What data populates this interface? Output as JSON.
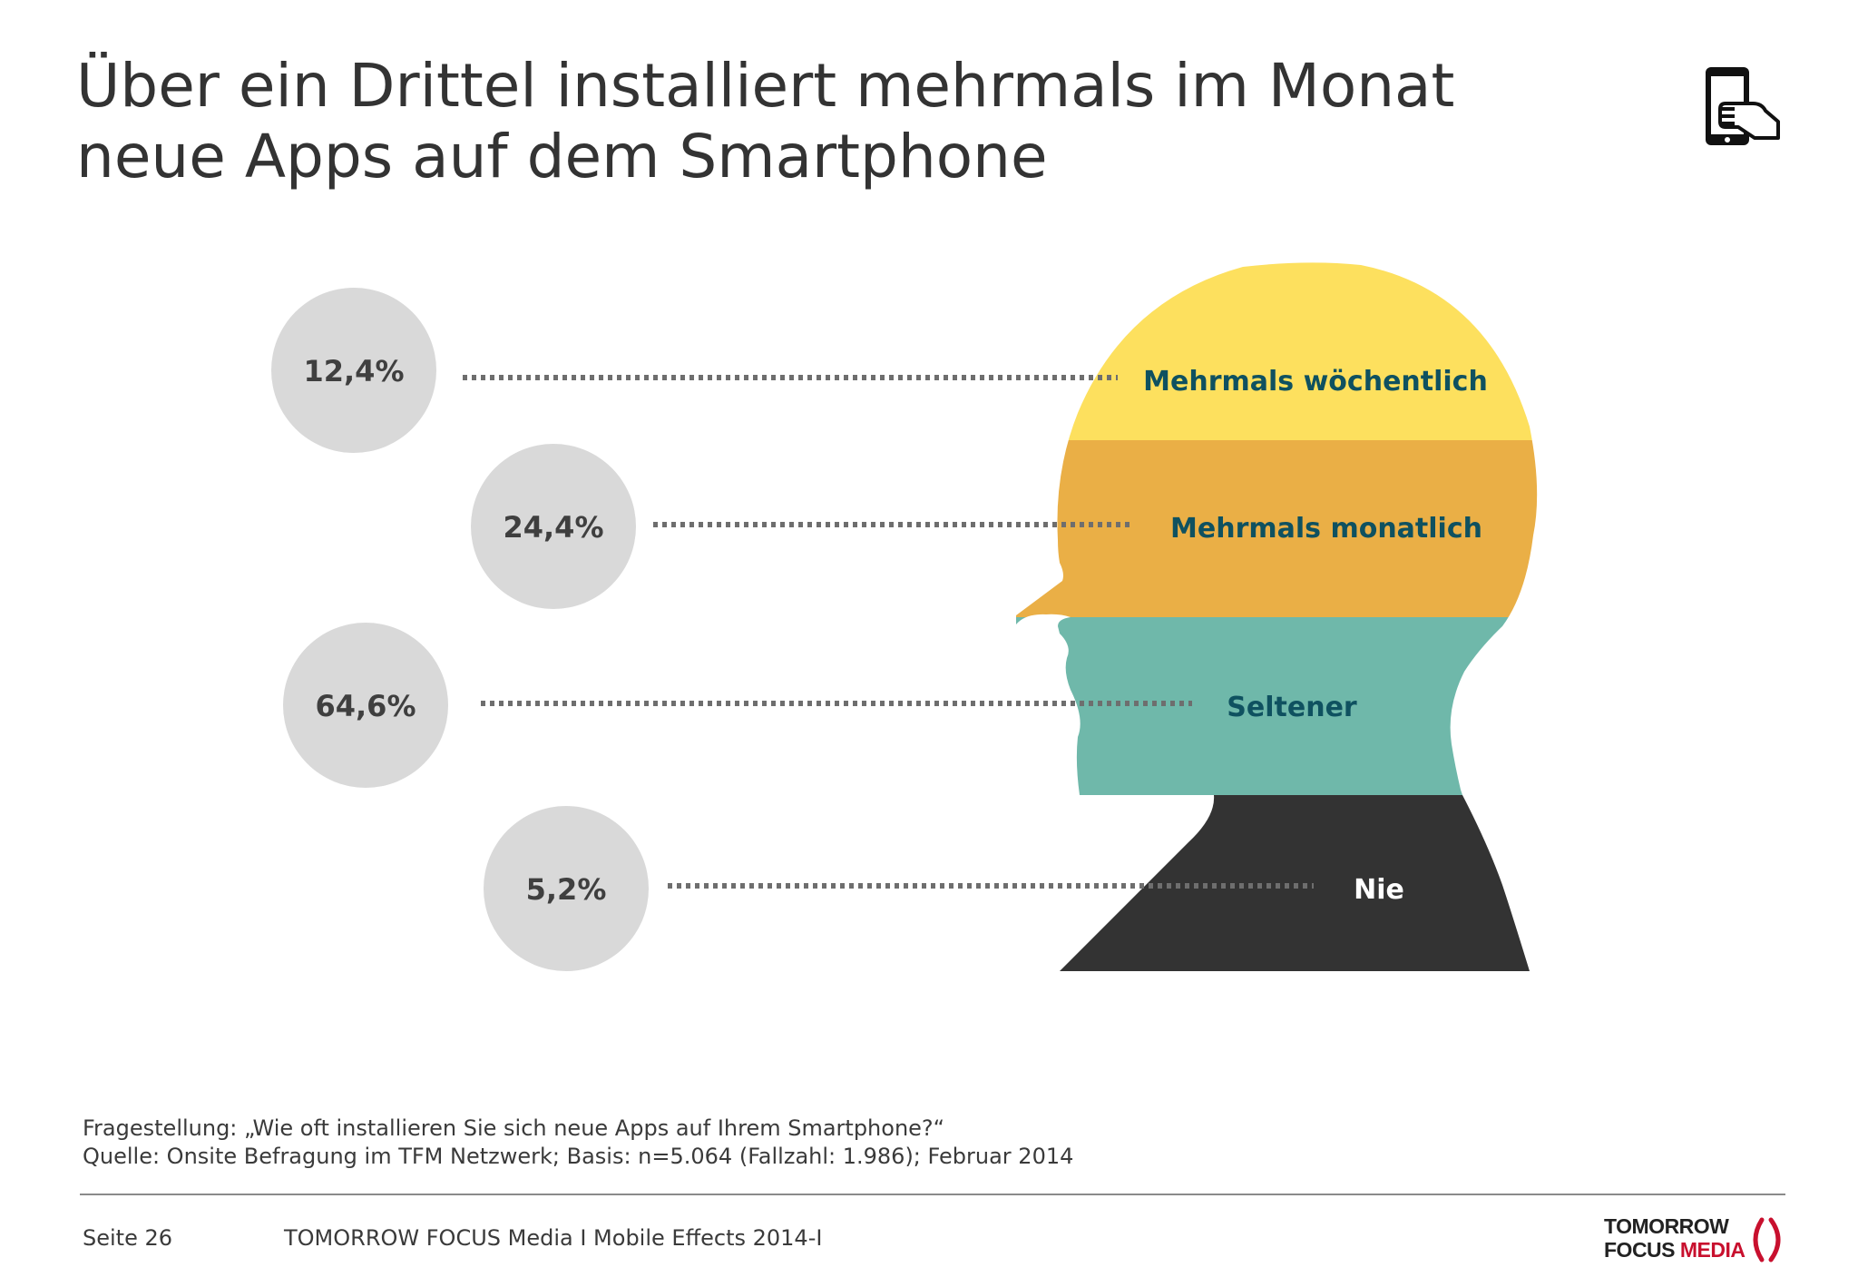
{
  "header": {
    "title_line1": "Über ein Drittel installiert mehrmals im Monat",
    "title_line2": "neue Apps auf dem Smartphone",
    "icon": "smartphone-touch-icon"
  },
  "chart_data": {
    "type": "bar",
    "categories": [
      "Mehrmals wöchentlich",
      "Mehrmals monatlich",
      "Seltener",
      "Nie"
    ],
    "values": [
      12.4,
      24.4,
      64.6,
      5.2
    ],
    "value_labels": [
      "12,4%",
      "24,4%",
      "64,6%",
      "5,2%"
    ],
    "unit": "%",
    "colors": [
      "#fde05e",
      "#eaaf46",
      "#6fb8aa",
      "#333333"
    ],
    "label_colors": [
      "#0f5160",
      "#0f5160",
      "#0f5160",
      "#ffffff"
    ],
    "title": "",
    "xlabel": "",
    "ylabel": ""
  },
  "footnote": {
    "question": "Fragestellung: „Wie oft installieren Sie sich neue Apps auf Ihrem Smartphone?“",
    "source": "Quelle: Onsite Befragung im TFM Netzwerk; Basis: n=5.064 (Fallzahl: 1.986); Februar 2014"
  },
  "footer": {
    "page": "Seite 26",
    "source": "TOMORROW FOCUS Media  I  Mobile Effects 2014-I"
  },
  "logo": {
    "line1": "TOMORROW",
    "line2a": "FOCUS",
    "line2b": "MEDIA"
  }
}
